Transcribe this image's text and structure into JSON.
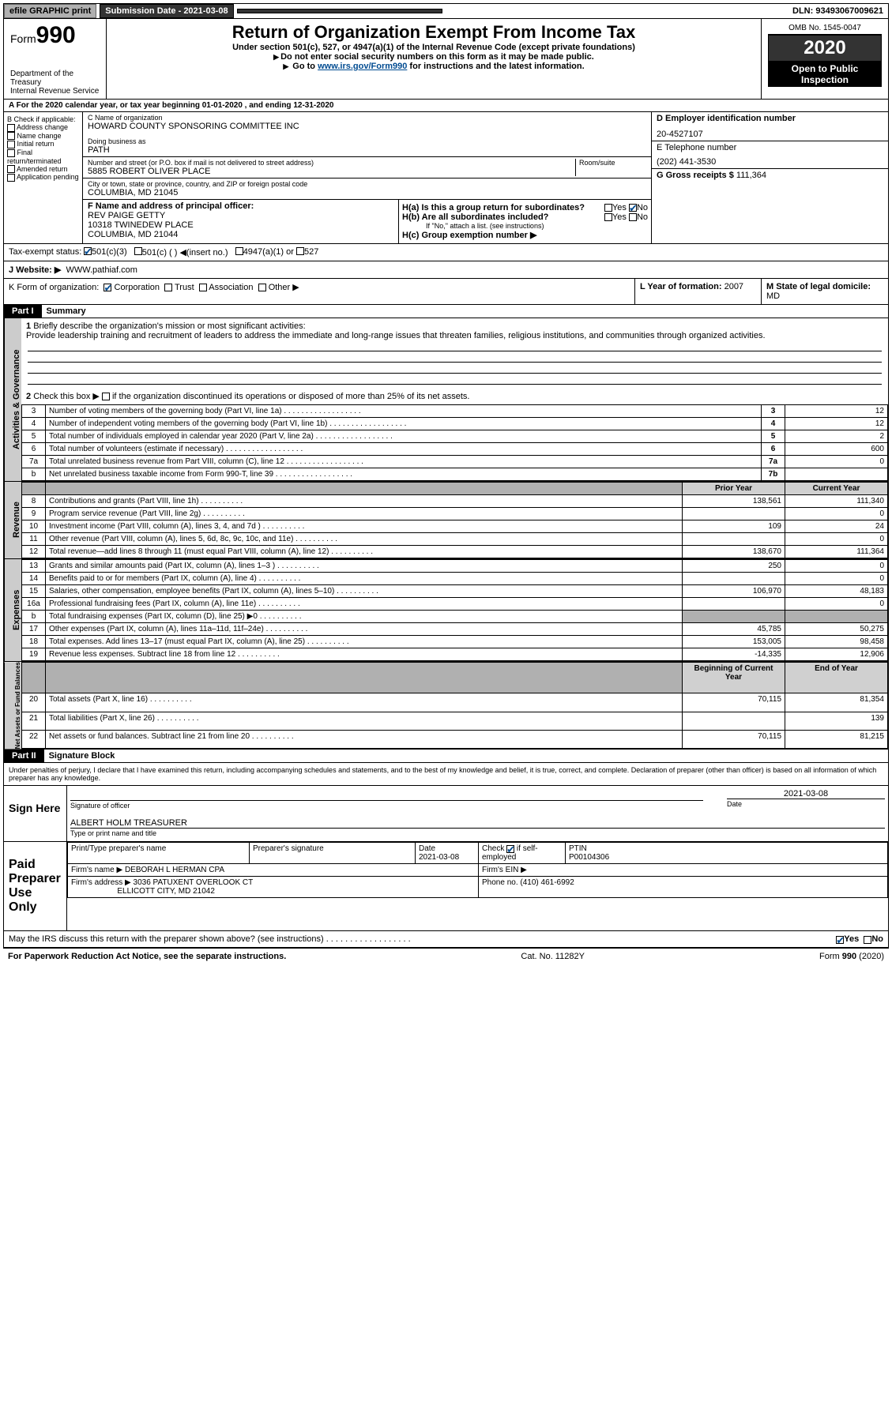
{
  "topbar": {
    "efile": "efile GRAPHIC print",
    "submit_label": "Submission Date - 2021-03-08",
    "dln": "DLN: 93493067009621"
  },
  "header": {
    "form_prefix": "Form",
    "form_num": "990",
    "dept": "Department of the Treasury\nInternal Revenue Service",
    "title": "Return of Organization Exempt From Income Tax",
    "line1": "Under section 501(c), 527, or 4947(a)(1) of the Internal Revenue Code (except private foundations)",
    "line2": "Do not enter social security numbers on this form as it may be made public.",
    "line3a": "Go to ",
    "line3link": "www.irs.gov/Form990",
    "line3b": " for instructions and the latest information.",
    "omb": "OMB No. 1545-0047",
    "year": "2020",
    "otp1": "Open to Public",
    "otp2": "Inspection"
  },
  "rowA": "A  For the 2020 calendar year, or tax year beginning 01-01-2020      , and ending 12-31-2020",
  "B": {
    "title": "B Check if applicable:",
    "opts": [
      "Address change",
      "Name change",
      "Initial return",
      "Final return/terminated",
      "Amended return",
      "Application pending"
    ]
  },
  "C": {
    "label": "C Name of organization",
    "org": "HOWARD COUNTY SPONSORING COMMITTEE INC",
    "dba_label": "Doing business as",
    "dba": "PATH",
    "addr_label": "Number and street (or P.O. box if mail is not delivered to street address)",
    "room": "Room/suite",
    "addr": "5885 ROBERT OLIVER PLACE",
    "city_label": "City or town, state or province, country, and ZIP or foreign postal code",
    "city": "COLUMBIA, MD   21045"
  },
  "D": {
    "label": "D Employer identification number",
    "val": "20-4527107"
  },
  "E": {
    "label": "E Telephone number",
    "val": "(202) 441-3530"
  },
  "G": {
    "label": "G Gross receipts $",
    "val": "111,364"
  },
  "F": {
    "label": "F  Name and address of principal officer:",
    "name": "REV PAIGE GETTY",
    "addr1": "10318 TWINEDEW PLACE",
    "addr2": "COLUMBIA, MD   21044"
  },
  "H": {
    "a": "H(a)  Is this a group return for subordinates?",
    "b": "H(b)  Are all subordinates included?",
    "bnote": "If \"No,\" attach a list. (see instructions)",
    "c": "H(c)  Group exemption number ▶",
    "yes": "Yes",
    "no": "No"
  },
  "I": {
    "label": "Tax-exempt status:",
    "o1": "501(c)(3)",
    "o2": "501(c) (   ) ◀(insert no.)",
    "o3": "4947(a)(1) or",
    "o4": "527"
  },
  "J": {
    "label": "J   Website: ▶",
    "val": "WWW.pathiaf.com"
  },
  "K": {
    "label": "K Form of organization:",
    "o1": "Corporation",
    "o2": "Trust",
    "o3": "Association",
    "o4": "Other ▶"
  },
  "L": {
    "label": "L Year of formation:",
    "val": "2007"
  },
  "M": {
    "label": "M State of legal domicile:",
    "val": "MD"
  },
  "part1": {
    "part": "Part I",
    "title": "Summary"
  },
  "q1": {
    "n": "1",
    "t": "Briefly describe the organization's mission or most significant activities:",
    "ans": "Provide leadership training and recruitment of leaders to address the immediate and long-range issues that threaten families, religious institutions, and communities through organized activities."
  },
  "q2": {
    "n": "2",
    "t": "Check this box ▶",
    "t2": " if the organization discontinued its operations or disposed of more than 25% of its net assets."
  },
  "rows_gov": [
    {
      "n": "3",
      "t": "Number of voting members of the governing body (Part VI, line 1a)",
      "box": "3",
      "v": "12"
    },
    {
      "n": "4",
      "t": "Number of independent voting members of the governing body (Part VI, line 1b)",
      "box": "4",
      "v": "12"
    },
    {
      "n": "5",
      "t": "Total number of individuals employed in calendar year 2020 (Part V, line 2a)",
      "box": "5",
      "v": "2"
    },
    {
      "n": "6",
      "t": "Total number of volunteers (estimate if necessary)",
      "box": "6",
      "v": "600"
    },
    {
      "n": "7a",
      "t": "Total unrelated business revenue from Part VIII, column (C), line 12",
      "box": "7a",
      "v": "0"
    },
    {
      "n": "b",
      "t": "Net unrelated business taxable income from Form 990-T, line 39",
      "box": "7b",
      "v": ""
    }
  ],
  "col_hdrs": {
    "py": "Prior Year",
    "cy": "Current Year"
  },
  "rev_rows": [
    {
      "n": "8",
      "t": "Contributions and grants (Part VIII, line 1h)",
      "py": "138,561",
      "cy": "111,340"
    },
    {
      "n": "9",
      "t": "Program service revenue (Part VIII, line 2g)",
      "py": "",
      "cy": "0"
    },
    {
      "n": "10",
      "t": "Investment income (Part VIII, column (A), lines 3, 4, and 7d )",
      "py": "109",
      "cy": "24"
    },
    {
      "n": "11",
      "t": "Other revenue (Part VIII, column (A), lines 5, 6d, 8c, 9c, 10c, and 11e)",
      "py": "",
      "cy": "0"
    },
    {
      "n": "12",
      "t": "Total revenue—add lines 8 through 11 (must equal Part VIII, column (A), line 12)",
      "py": "138,670",
      "cy": "111,364"
    }
  ],
  "exp_rows": [
    {
      "n": "13",
      "t": "Grants and similar amounts paid (Part IX, column (A), lines 1–3 )",
      "py": "250",
      "cy": "0"
    },
    {
      "n": "14",
      "t": "Benefits paid to or for members (Part IX, column (A), line 4)",
      "py": "",
      "cy": "0"
    },
    {
      "n": "15",
      "t": "Salaries, other compensation, employee benefits (Part IX, column (A), lines 5–10)",
      "py": "106,970",
      "cy": "48,183"
    },
    {
      "n": "16a",
      "t": "Professional fundraising fees (Part IX, column (A), line 11e)",
      "py": "",
      "cy": "0"
    },
    {
      "n": "b",
      "t": "Total fundraising expenses (Part IX, column (D), line 25) ▶0",
      "py": "GRAY",
      "cy": "GRAY"
    },
    {
      "n": "17",
      "t": "Other expenses (Part IX, column (A), lines 11a–11d, 11f–24e)",
      "py": "45,785",
      "cy": "50,275"
    },
    {
      "n": "18",
      "t": "Total expenses. Add lines 13–17 (must equal Part IX, column (A), line 25)",
      "py": "153,005",
      "cy": "98,458"
    },
    {
      "n": "19",
      "t": "Revenue less expenses. Subtract line 18 from line 12",
      "py": "-14,335",
      "cy": "12,906"
    }
  ],
  "na_hdrs": {
    "b": "Beginning of Current Year",
    "e": "End of Year"
  },
  "na_rows": [
    {
      "n": "20",
      "t": "Total assets (Part X, line 16)",
      "b": "70,115",
      "e": "81,354"
    },
    {
      "n": "21",
      "t": "Total liabilities (Part X, line 26)",
      "b": "",
      "e": "139"
    },
    {
      "n": "22",
      "t": "Net assets or fund balances. Subtract line 21 from line 20",
      "b": "70,115",
      "e": "81,215"
    }
  ],
  "part2": {
    "part": "Part II",
    "title": "Signature Block"
  },
  "penalty": "Under penalties of perjury, I declare that I have examined this return, including accompanying schedules and statements, and to the best of my knowledge and belief, it is true, correct, and complete. Declaration of preparer (other than officer) is based on all information of which preparer has any knowledge.",
  "sign": {
    "here": "Sign Here",
    "sig_of": "Signature of officer",
    "date": "Date",
    "date_v": "2021-03-08",
    "name": "ALBERT HOLM  TREASURER",
    "nlabel": "Type or print name and title"
  },
  "paid": {
    "here": "Paid Preparer Use Only",
    "c1": "Print/Type preparer's name",
    "c2": "Preparer's signature",
    "c3": "Date",
    "c3v": "2021-03-08",
    "c4": "Check        if self-employed",
    "c5": "PTIN",
    "c5v": "P00104306",
    "firm_l": "Firm's name    ▶",
    "firm": "DEBORAH L HERMAN CPA",
    "ein_l": "Firm's EIN ▶",
    "addr_l": "Firm's address ▶",
    "addr1": "3036 PATUXENT OVERLOOK CT",
    "addr2": "ELLICOTT CITY, MD   21042",
    "phone_l": "Phone no.",
    "phone": "(410) 461-6992"
  },
  "footer": {
    "q": "May the IRS discuss this return with the preparer shown above? (see instructions)",
    "yes": "Yes",
    "no": "No",
    "pra": "For Paperwork Reduction Act Notice, see the separate instructions.",
    "cat": "Cat. No. 11282Y",
    "form": "Form 990 (2020)"
  },
  "sidelabels": {
    "gov": "Activities & Governance",
    "rev": "Revenue",
    "exp": "Expenses",
    "na": "Net Assets or Fund Balances"
  }
}
